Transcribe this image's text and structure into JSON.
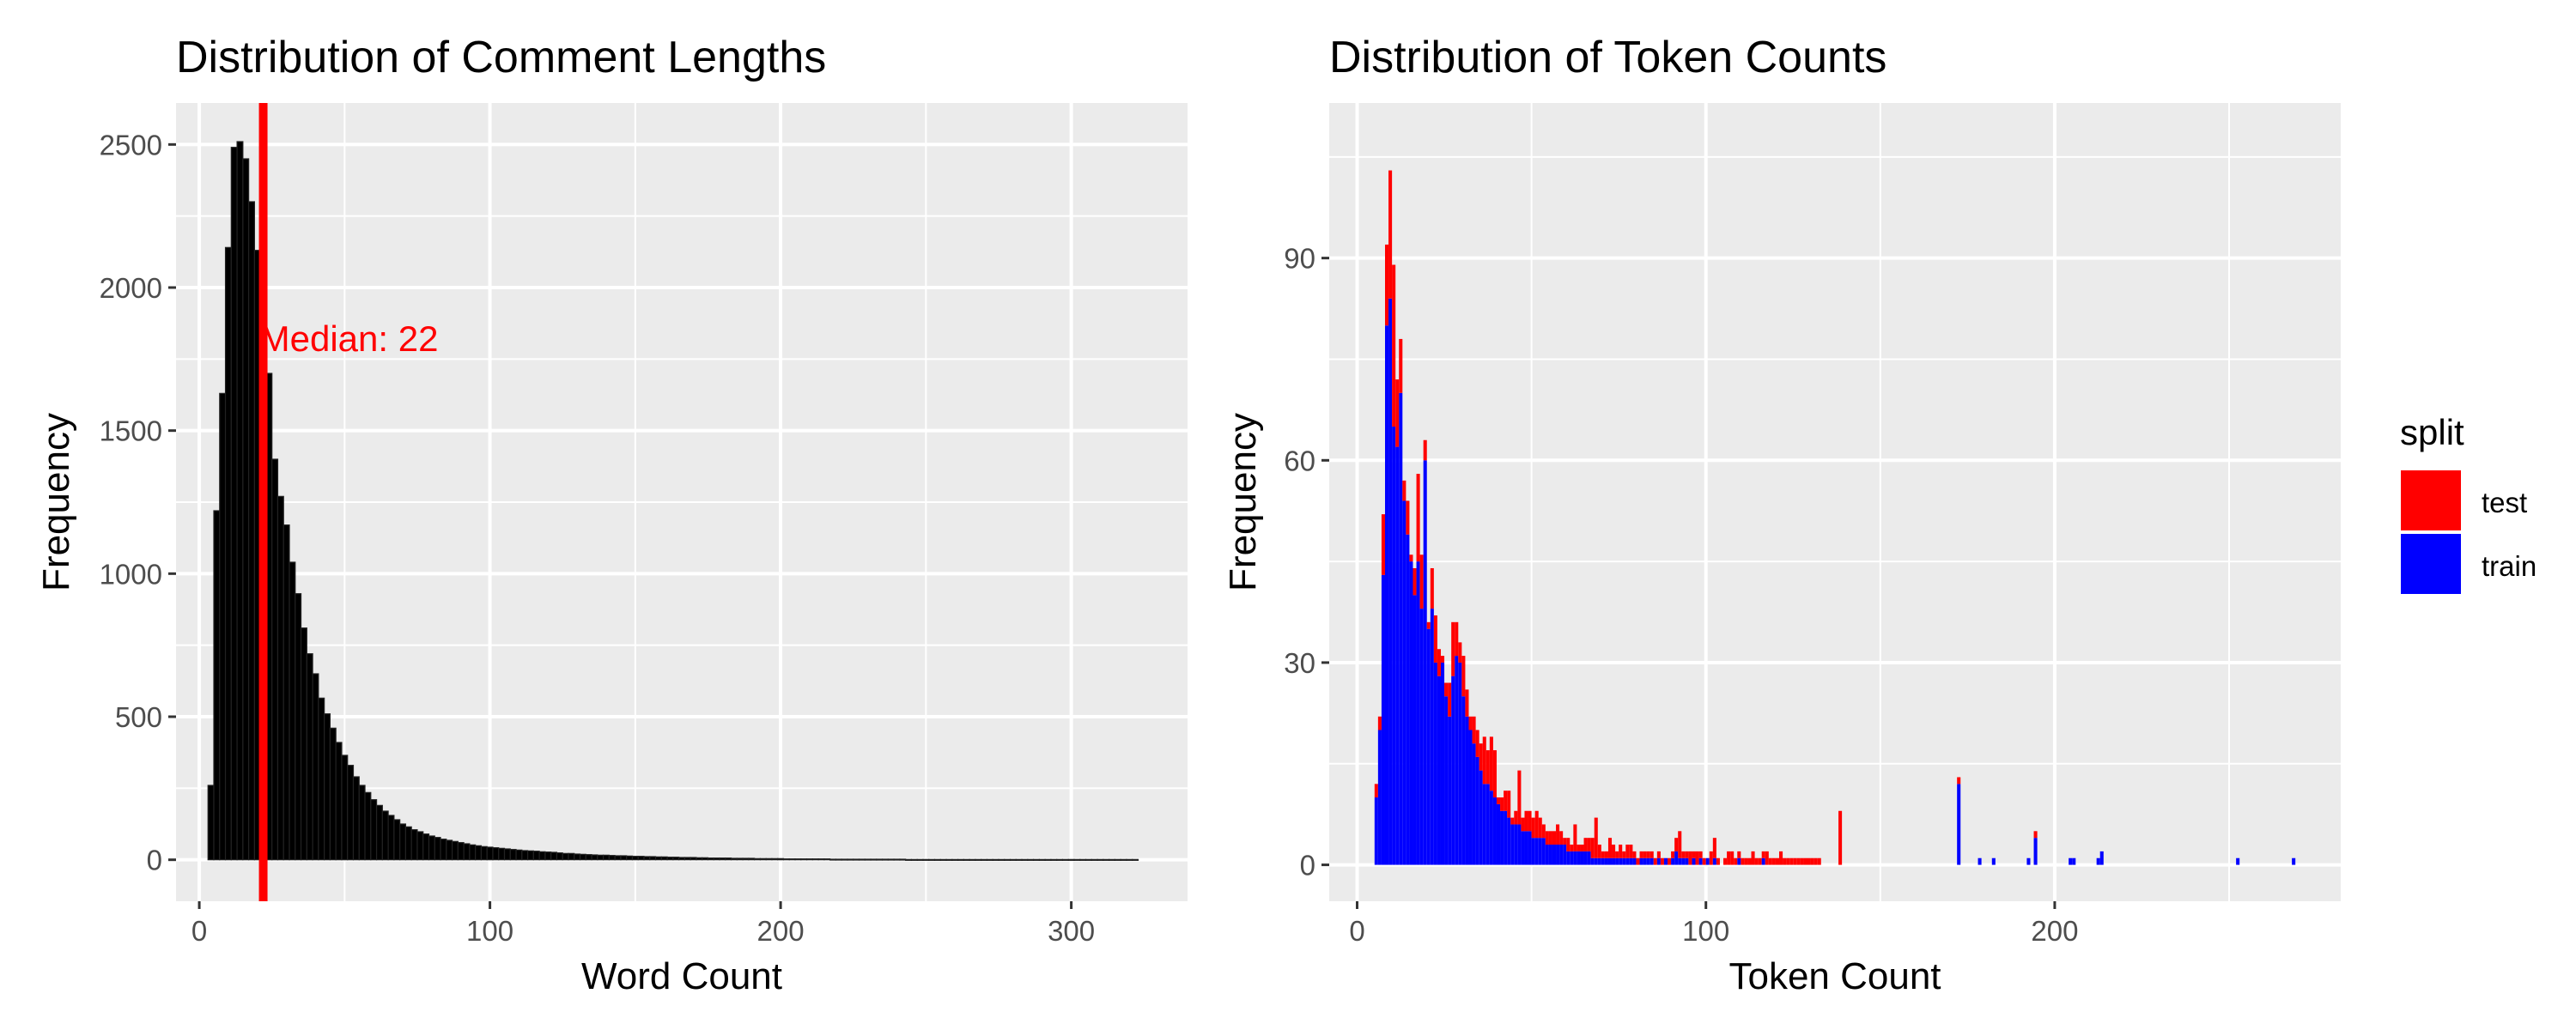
{
  "chart_data": [
    {
      "type": "bar",
      "title": "Distribution of Comment Lengths",
      "xlabel": "Word Count",
      "ylabel": "Frequency",
      "xlim": [
        -8,
        340
      ],
      "ylim": [
        -145,
        2645
      ],
      "x_ticks": [
        0,
        100,
        200,
        300
      ],
      "y_ticks": [
        0,
        500,
        1000,
        1500,
        2000,
        2500
      ],
      "grid": true,
      "bar_color": "#000000",
      "median": {
        "value": 22,
        "label": "Median: 22",
        "color": "#ff0000",
        "label_y": 1820
      },
      "bins": {
        "start": 3,
        "width": 2,
        "counts": [
          260,
          1220,
          1630,
          2140,
          2490,
          2510,
          2450,
          2300,
          2130,
          1970,
          1700,
          1400,
          1270,
          1170,
          1040,
          930,
          810,
          720,
          650,
          565,
          510,
          460,
          410,
          365,
          330,
          290,
          260,
          235,
          210,
          190,
          170,
          155,
          140,
          125,
          115,
          105,
          98,
          90,
          83,
          78,
          72,
          68,
          64,
          60,
          56,
          52,
          49,
          46,
          44,
          42,
          40,
          38,
          36,
          34,
          32,
          31,
          30,
          28,
          27,
          26,
          24,
          22,
          22,
          20,
          19,
          18,
          17,
          16,
          16,
          15,
          14,
          14,
          13,
          12,
          12,
          11,
          11,
          10,
          10,
          9,
          9,
          8,
          8,
          8,
          7,
          7,
          6,
          6,
          6,
          6,
          5,
          5,
          5,
          5,
          4,
          4,
          4,
          4,
          4,
          3,
          3,
          3,
          3,
          3,
          3,
          3,
          3,
          2,
          2,
          2,
          2,
          2,
          2,
          2,
          2,
          2,
          2,
          2,
          2,
          2,
          1,
          1,
          1,
          1,
          1,
          1,
          1,
          1,
          1,
          1,
          1,
          1,
          1,
          1,
          1,
          1,
          1,
          1,
          1,
          1,
          1,
          1,
          1,
          1,
          1,
          1,
          1,
          1,
          1,
          1,
          1,
          1,
          1,
          1,
          1,
          1,
          1,
          1,
          1,
          1
        ]
      }
    },
    {
      "type": "bar",
      "stacked": true,
      "title": "Distribution of Token Counts",
      "xlabel": "Token Count",
      "ylabel": "Frequency",
      "xlim": [
        -8,
        282
      ],
      "ylim": [
        -5.4,
        113
      ],
      "x_ticks": [
        0,
        100,
        200
      ],
      "y_ticks": [
        0,
        30,
        60,
        90
      ],
      "grid": true,
      "legend": {
        "title": "split",
        "position": "right"
      },
      "bins": {
        "start": 5,
        "width": 1
      },
      "series": [
        {
          "name": "test",
          "color": "#ff0000",
          "values": [
            2,
            2,
            9,
            12,
            19,
            24,
            10,
            8,
            3,
            5,
            1,
            4,
            13,
            8,
            3,
            1,
            6,
            7,
            4,
            1,
            2,
            5,
            8,
            5,
            3,
            6,
            4,
            2,
            4,
            4,
            4,
            7,
            5,
            8,
            7,
            1,
            2,
            3,
            4,
            1,
            2,
            8,
            2,
            3,
            3,
            3,
            4,
            3,
            2,
            2,
            2,
            2,
            3,
            2,
            1,
            2,
            1,
            4,
            1,
            1,
            2,
            2,
            3,
            6,
            2,
            1,
            1,
            3,
            2,
            1,
            2,
            1,
            2,
            2,
            1,
            1,
            1,
            1,
            1,
            1,
            1,
            1,
            1,
            0,
            1,
            1,
            2,
            4,
            1,
            1,
            2,
            1,
            2,
            1,
            1,
            0,
            2,
            3,
            1,
            0,
            1,
            2,
            2,
            1,
            1,
            1,
            1,
            1,
            2,
            1,
            1,
            1,
            2,
            1,
            1,
            1,
            2,
            1,
            1,
            1,
            1,
            1,
            1,
            1,
            1,
            1,
            1,
            1,
            0,
            0,
            0,
            0,
            0,
            0,
            0,
            0,
            0,
            0,
            0,
            0,
            0,
            0,
            0,
            0,
            0,
            0,
            0,
            0,
            0,
            0,
            0,
            0,
            0,
            0,
            0,
            0,
            0,
            0,
            0,
            0,
            0,
            0,
            0,
            0,
            0,
            0,
            0,
            0,
            0,
            0,
            0,
            0,
            0,
            0,
            0,
            0,
            0,
            0,
            0,
            0,
            0,
            0,
            0,
            0,
            0,
            0,
            0,
            0,
            0,
            0,
            0,
            0,
            0,
            0,
            0,
            0,
            0,
            0,
            0,
            0,
            0,
            0,
            0,
            0,
            0,
            0,
            0,
            0,
            0,
            0,
            0,
            0,
            0,
            0,
            0,
            0,
            0,
            0,
            0,
            0,
            0,
            0,
            0,
            0,
            0,
            0,
            0,
            0,
            0,
            0,
            0,
            0,
            0,
            0,
            0,
            0,
            0,
            0,
            0,
            0,
            0,
            0,
            0,
            0,
            0,
            0,
            0,
            0,
            0,
            0,
            0,
            0,
            0,
            0,
            0,
            0,
            0,
            0,
            0,
            0,
            0,
            0,
            0,
            0,
            0,
            0,
            0,
            0,
            0,
            0,
            0,
            0
          ]
        },
        {
          "name": "train",
          "color": "#0000ff",
          "values": [
            10,
            20,
            43,
            80,
            84,
            65,
            62,
            70,
            54,
            49,
            45,
            40,
            45,
            38,
            60,
            35,
            38,
            30,
            28,
            30,
            25,
            22,
            28,
            31,
            30,
            25,
            22,
            20,
            18,
            16,
            14,
            12,
            12,
            11,
            10,
            9,
            8,
            8,
            7,
            6,
            6,
            6,
            5,
            5,
            5,
            4,
            4,
            4,
            4,
            3,
            3,
            3,
            3,
            3,
            3,
            2,
            2,
            2,
            2,
            2,
            2,
            2,
            1,
            1,
            1,
            1,
            1,
            1,
            1,
            1,
            1,
            1,
            1,
            1,
            1,
            0,
            1,
            1,
            1,
            1,
            0,
            1,
            0,
            1,
            0,
            1,
            2,
            1,
            1,
            1,
            0,
            1,
            0,
            1,
            0,
            1,
            0,
            1,
            0,
            0,
            0,
            0,
            0,
            0,
            1,
            0,
            0,
            0,
            0,
            0,
            0,
            1,
            0,
            0,
            0,
            0,
            0,
            0,
            0,
            0,
            0,
            0,
            0,
            0,
            0,
            0,
            0,
            0,
            0,
            0,
            0,
            0,
            0,
            0,
            0,
            0,
            0,
            0,
            0,
            0,
            0,
            0,
            0,
            0,
            0,
            0,
            0,
            0,
            0,
            0,
            0,
            0,
            0,
            0,
            0,
            0,
            0,
            0,
            0,
            0,
            0,
            0,
            0,
            0,
            0,
            0,
            0,
            0,
            0,
            0,
            0,
            0,
            0,
            0,
            0,
            0,
            0,
            0,
            0,
            0,
            0,
            0,
            0,
            0,
            0,
            0,
            0,
            0,
            0,
            0,
            0,
            0,
            0,
            0,
            0,
            0,
            0,
            0,
            0,
            0,
            0,
            0,
            0,
            0,
            0,
            0,
            0,
            0,
            0,
            0,
            0,
            0,
            0,
            0,
            0,
            0,
            0,
            0,
            0,
            0,
            0,
            0,
            0,
            0,
            0,
            0,
            0,
            0,
            0,
            0,
            0,
            0,
            0,
            0,
            0,
            0,
            0,
            0,
            0,
            0,
            0,
            0,
            0,
            0,
            0,
            0,
            0,
            0,
            0,
            0,
            0,
            0,
            0,
            0,
            0,
            0,
            0,
            0,
            0,
            0,
            0,
            0,
            0
          ]
        }
      ],
      "sparse_points": [
        {
          "series": "test",
          "x": 138,
          "value": 8
        },
        {
          "series": "test",
          "x": 172,
          "value": 1
        },
        {
          "series": "train",
          "x": 172,
          "value": 12
        },
        {
          "series": "test",
          "x": 194,
          "value": 1
        },
        {
          "series": "train",
          "x": 194,
          "value": 4
        },
        {
          "series": "train",
          "x": 178,
          "value": 1
        },
        {
          "series": "train",
          "x": 182,
          "value": 1
        },
        {
          "series": "train",
          "x": 192,
          "value": 1
        },
        {
          "series": "train",
          "x": 204,
          "value": 1
        },
        {
          "series": "train",
          "x": 205,
          "value": 1
        },
        {
          "series": "train",
          "x": 212,
          "value": 1
        },
        {
          "series": "train",
          "x": 213,
          "value": 2
        },
        {
          "series": "train",
          "x": 252,
          "value": 1
        },
        {
          "series": "train",
          "x": 268,
          "value": 1
        }
      ]
    }
  ]
}
